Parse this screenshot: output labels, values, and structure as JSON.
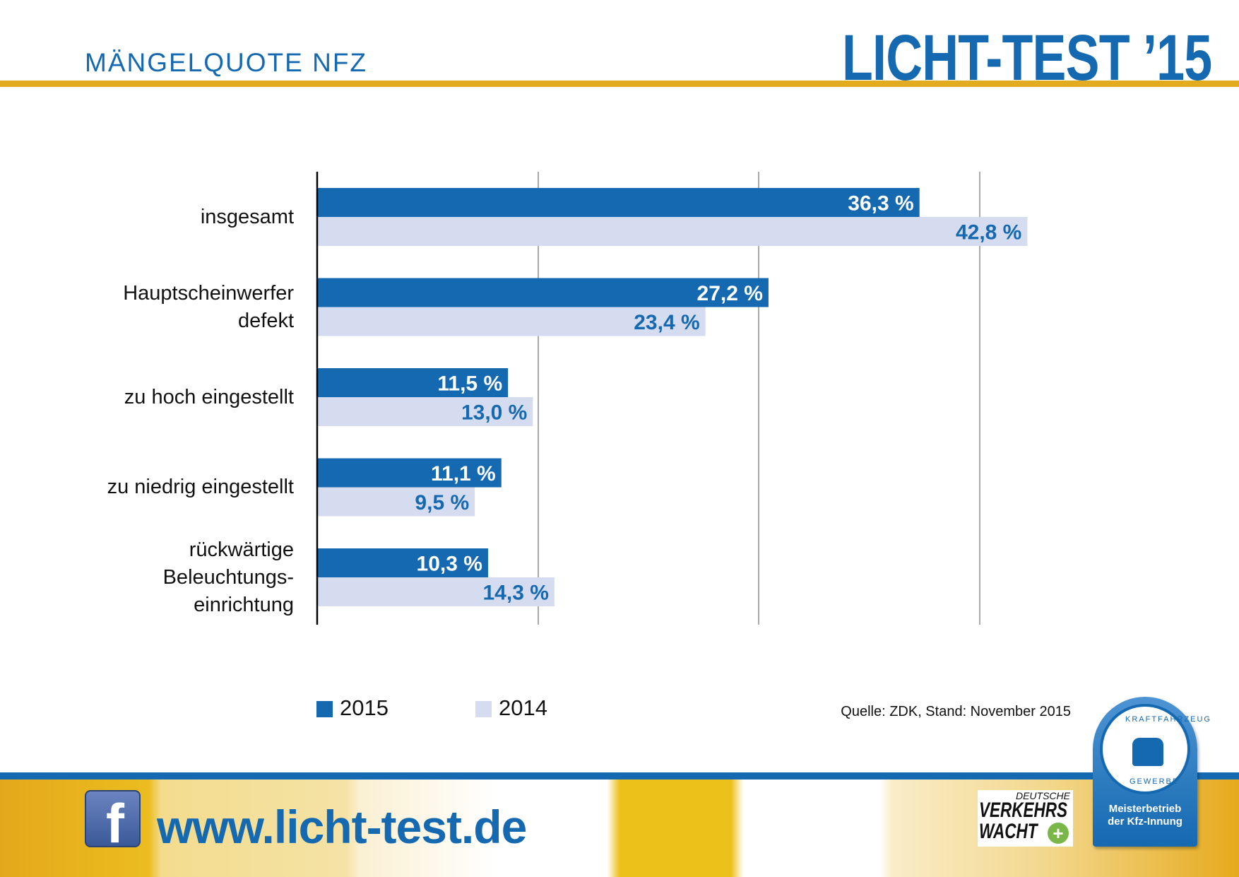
{
  "header": {
    "subtitle": "MÄNGELQUOTE NFZ",
    "brand": "LICHT-TEST ’15"
  },
  "colors": {
    "series_2015": "#1569b0",
    "series_2014": "#d6dcf0",
    "accent_gold": "#e3ac1f",
    "brand_blue": "#1569b0"
  },
  "chart_data": {
    "type": "bar",
    "orientation": "horizontal",
    "categories": [
      "insgesamt",
      "Hauptscheinwerfer\ndefekt",
      "zu hoch eingestellt",
      "zu niedrig eingestellt",
      "rückwärtige\nBeleuchtungs-\neinrichtung"
    ],
    "series": [
      {
        "name": "2015",
        "values": [
          36.3,
          27.2,
          11.5,
          11.1,
          10.3
        ],
        "labels": [
          "36,3 %",
          "27,2 %",
          "11,5 %",
          "11,1 %",
          "10,3 %"
        ]
      },
      {
        "name": "2014",
        "values": [
          42.8,
          23.4,
          13.0,
          9.5,
          14.3
        ],
        "labels": [
          "42,8 %",
          "23,4 %",
          "13,0 %",
          "9,5 %",
          "14,3 %"
        ]
      }
    ],
    "unit": "%",
    "grid": true,
    "legend": "bottom-left"
  },
  "legend": {
    "items": [
      "2015",
      "2014"
    ]
  },
  "source": "Quelle: ZDK, Stand: November 2015",
  "footer": {
    "facebook_icon": "facebook-icon",
    "url": "www.licht-test.de",
    "dvw": {
      "line1": "DEUTSCHE",
      "line2": "VERKEHRS",
      "line3": "WACHT"
    },
    "badge": {
      "ring_top": "KRAFTFAHRZEUG",
      "ring_bottom": "GEWERBE",
      "line1": "Meisterbetrieb",
      "line2": "der Kfz-Innung"
    }
  }
}
